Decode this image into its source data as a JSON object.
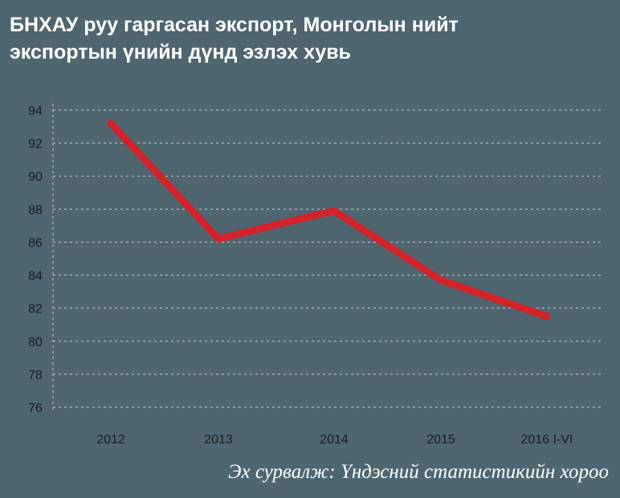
{
  "title_line1": "БНХАУ руу гаргасан экспорт, Монголын нийт",
  "title_line2": "экспортын үнийн дүнд эзлэх хувь",
  "source": "Эх сурвалж: Үндэсний статистикийн хороо",
  "colors": {
    "background": "#4f6670",
    "line": "#d2232a",
    "grid": "#c9d2d6"
  },
  "chart_data": {
    "type": "line",
    "title": "БНХАУ руу гаргасан экспорт, Монголын нийт экспортын үнийн дүнд эзлэх хувь",
    "categories": [
      "2012",
      "2013",
      "2014",
      "2015",
      "2016 I-VI"
    ],
    "series": [
      {
        "values": [
          93.2,
          86.2,
          87.9,
          83.7,
          81.5
        ]
      }
    ],
    "ylim": [
      76,
      94
    ],
    "yticks": [
      76,
      78,
      80,
      82,
      84,
      86,
      88,
      90,
      92,
      94
    ],
    "grid": true,
    "xlabel": "",
    "ylabel": ""
  }
}
